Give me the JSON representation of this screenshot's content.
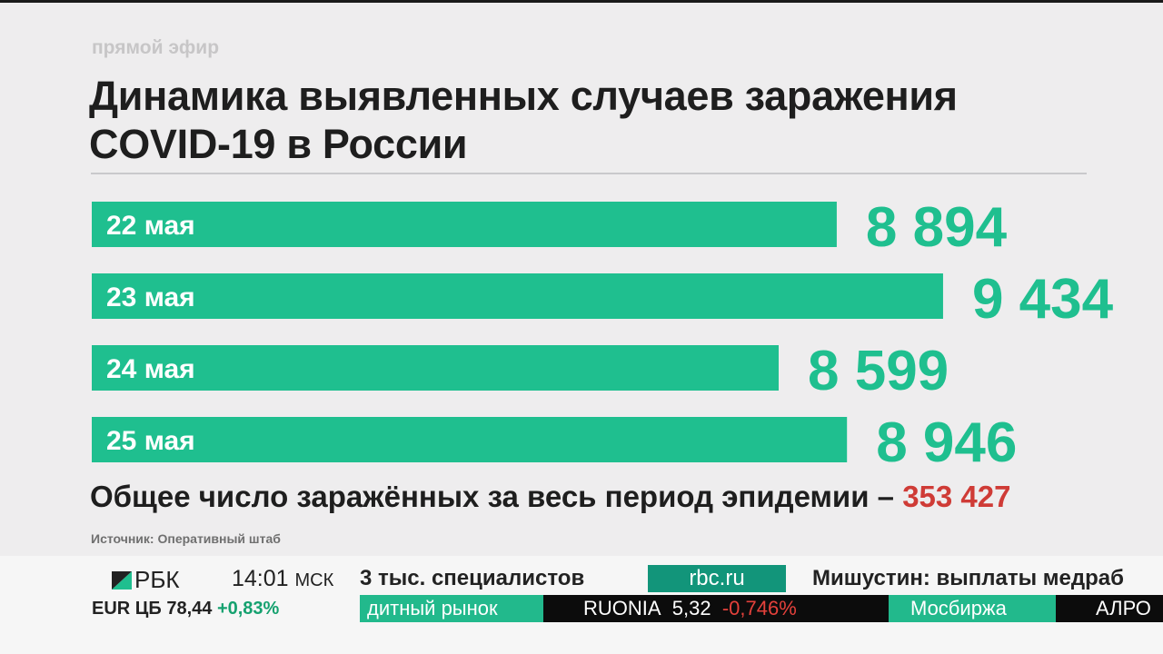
{
  "header": {
    "live_label": "прямой эфир",
    "title": "Динамика выявленных случаев заражения COVID-19 в России"
  },
  "chart_data": {
    "type": "bar",
    "orientation": "horizontal",
    "title": "Динамика выявленных случаев заражения COVID-19 в России",
    "categories": [
      "22 мая",
      "23 мая",
      "24 мая",
      "25 мая"
    ],
    "values": [
      8894,
      9434,
      8599,
      8946
    ],
    "value_labels": [
      "8 894",
      "9 434",
      "8 599",
      "8 946"
    ],
    "bar_color": "#1fbf8f",
    "value_color": "#1fbf8f",
    "label_color": "#ffffff",
    "grid": false,
    "legend": "none"
  },
  "summary": {
    "total_label": "Общее число заражённых за весь период эпидемии –",
    "total_value": "353 427",
    "total_color": "#cf3b36"
  },
  "source": "Источник: Оперативный штаб",
  "ticker": {
    "logo_text": "РБК",
    "time": "14:01",
    "timezone": "МСК",
    "currency_text": "EUR ЦБ 78,44",
    "currency_change": "+0,83%",
    "news_left": "3 тыс. специалистов",
    "site_badge": "rbc.ru",
    "news_right": "Мишустин: выплаты медраб",
    "market": {
      "segment1": "дитный рынок",
      "ruonia_label": "RUONIA",
      "ruonia_value": "5,32",
      "ruonia_change": "-0,746%",
      "exchange": "Мосбиржа",
      "stock": "АЛРО"
    }
  }
}
